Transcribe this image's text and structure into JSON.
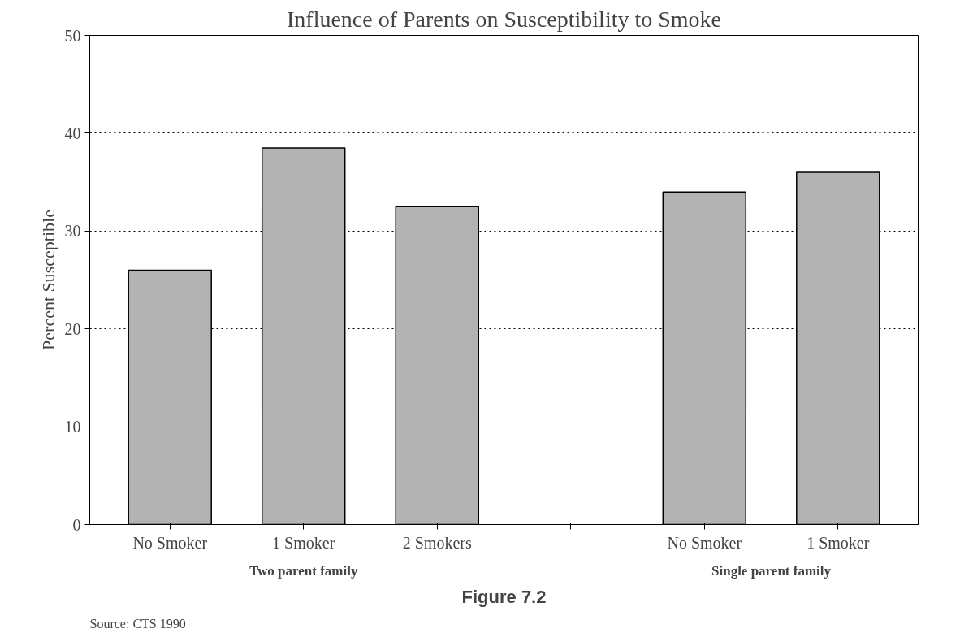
{
  "chart_data": {
    "type": "bar",
    "title": "Influence of Parents on Susceptibility to Smoke",
    "ylabel": "Percent Susceptible",
    "categories": [
      "No Smoker",
      "1 Smoker",
      "2 Smokers",
      null,
      "No Smoker",
      "1 Smoker"
    ],
    "values": [
      26,
      38.5,
      32.5,
      null,
      34,
      36
    ],
    "color": "#b3b3b3",
    "ylim": [
      0,
      50
    ],
    "yticks": [
      0,
      10,
      20,
      30,
      40,
      50
    ],
    "grid": "y",
    "annotations": [
      "Two parent family",
      "Single parent family",
      "Figure 7.2",
      "Source: CTS 1990"
    ]
  }
}
